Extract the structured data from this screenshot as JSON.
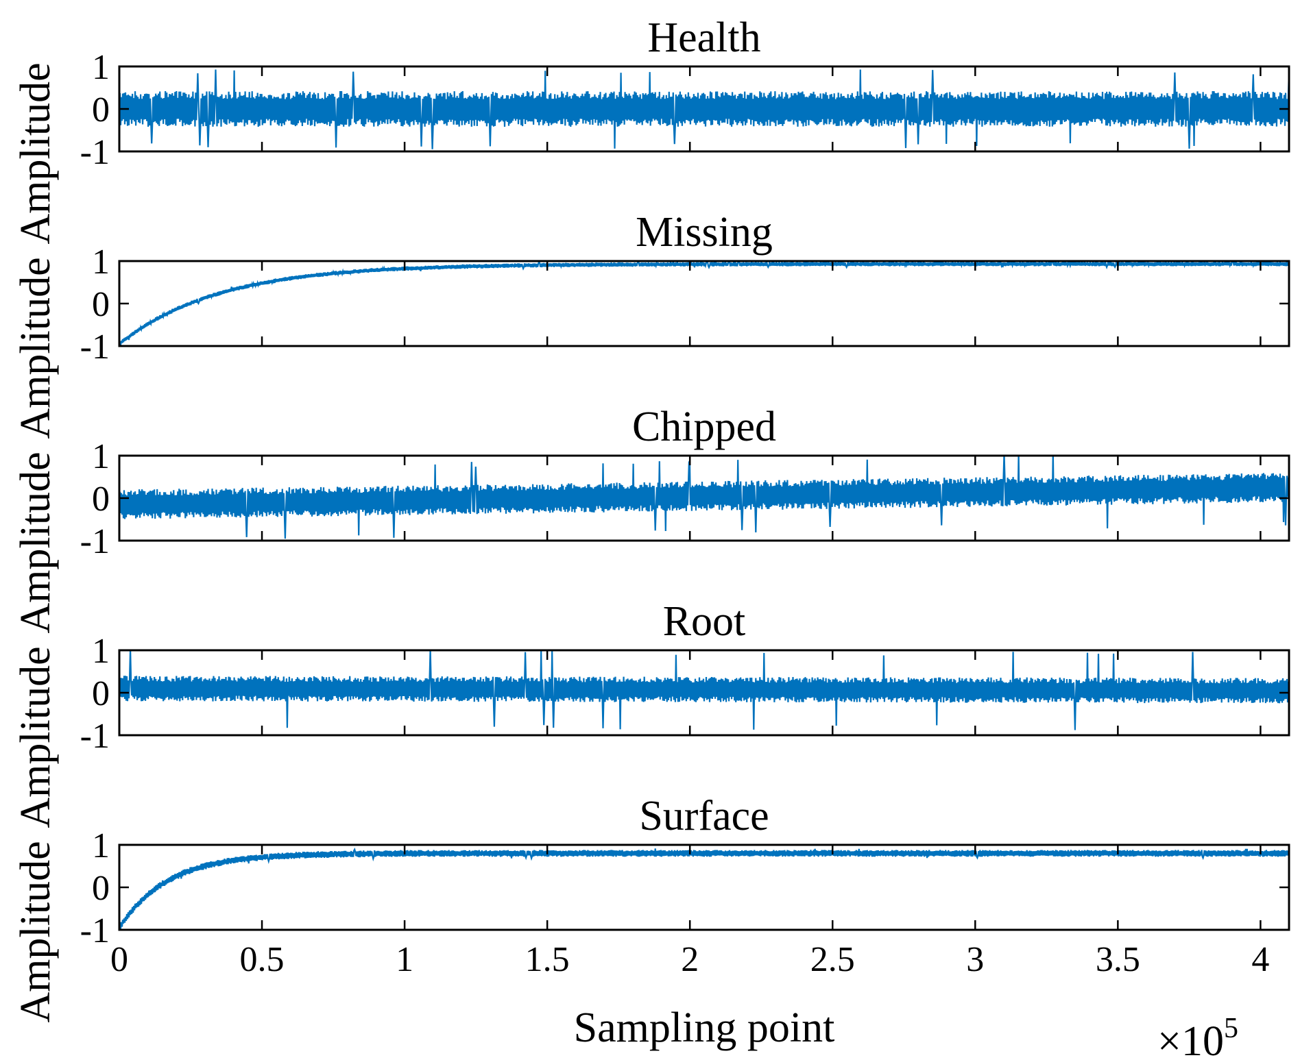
{
  "chart_data": {
    "type": "line",
    "xlabel": "Sampling point",
    "x_multiplier": "×10",
    "x_exponent": "5",
    "xlim": [
      0,
      4.1
    ],
    "x_ticks": [
      0,
      0.5,
      1,
      1.5,
      2,
      2.5,
      3,
      3.5,
      4
    ],
    "x_tick_labels": [
      "0",
      "0.5",
      "1",
      "1.5",
      "2",
      "2.5",
      "3",
      "3.5",
      "4"
    ],
    "ylim": [
      -1,
      1
    ],
    "y_ticks": [
      1,
      0,
      -1
    ],
    "y_tick_labels": [
      "1",
      "0",
      "-1"
    ],
    "series_color": "#0072BD",
    "panels": [
      {
        "title": "Health",
        "ylabel": "Amplitude",
        "mean_start": 0.0,
        "mean_end": 0.0,
        "tau": 0,
        "band": 0.42,
        "spike": 0.95,
        "description_of_signal": "zero-mean noise"
      },
      {
        "title": "Missing",
        "ylabel": "Amplitude",
        "mean_start": -0.95,
        "mean_end": 0.93,
        "tau": 0.35,
        "band": 0.05,
        "spike": 0.08,
        "description_of_signal": "exponential rise from -1 to ~0.9"
      },
      {
        "title": "Chipped",
        "ylabel": "Amplitude",
        "mean_start": -0.15,
        "mean_end": 0.25,
        "tau": 0,
        "band": 0.35,
        "spike": 0.9,
        "description_of_signal": "noise with slowly increasing mean"
      },
      {
        "title": "Root",
        "ylabel": "Amplitude",
        "mean_start": 0.1,
        "mean_end": 0.05,
        "tau": 0,
        "band": 0.3,
        "spike": 0.95,
        "description_of_signal": "noise with occasional spikes"
      },
      {
        "title": "Surface",
        "ylabel": "Amplitude",
        "mean_start": -0.95,
        "mean_end": 0.8,
        "tau": 0.17,
        "band": 0.08,
        "spike": 0.12,
        "description_of_signal": "fast exponential rise from -1 to ~0.8"
      }
    ]
  }
}
